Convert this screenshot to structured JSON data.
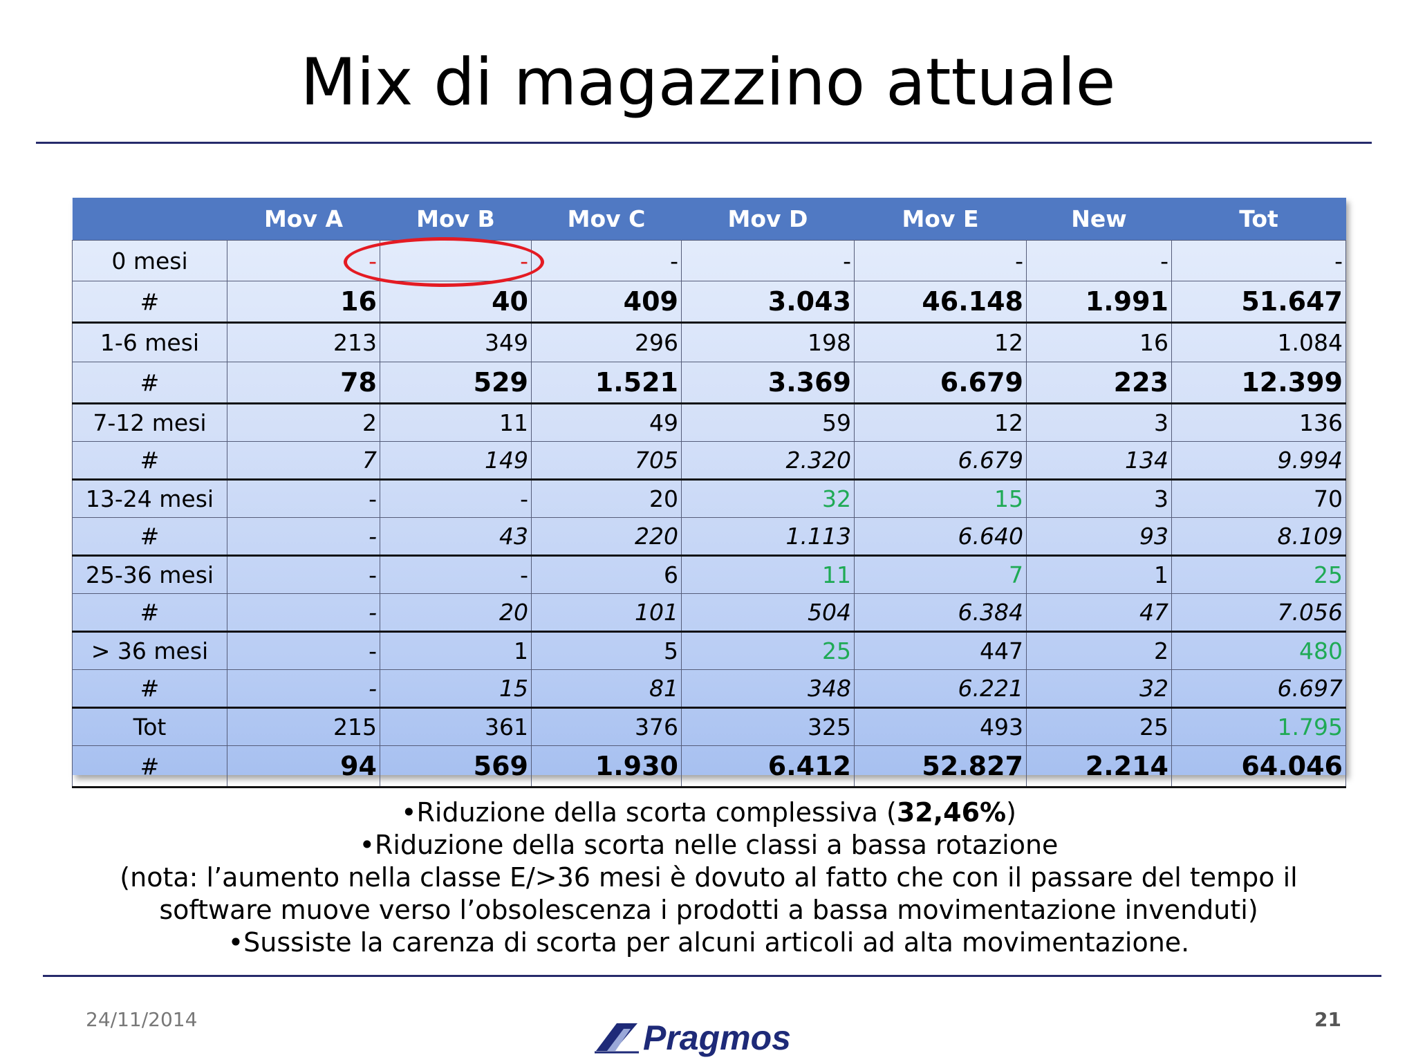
{
  "slide": {
    "title": "Mix di magazzino attuale",
    "date": "24/11/2014",
    "page_number": "21",
    "logo_text": "Pragmos"
  },
  "table": {
    "columns": [
      "",
      "Mov A",
      "Mov B",
      "Mov C",
      "Mov D",
      "Mov E",
      "New",
      "Tot"
    ],
    "rows": [
      {
        "label": "0 mesi",
        "values": [
          "-",
          "-",
          "-",
          "-",
          "-",
          "-",
          "-"
        ]
      },
      {
        "label": "#",
        "values": [
          "16",
          "40",
          "409",
          "3.043",
          "46.148",
          "1.991",
          "51.647"
        ]
      },
      {
        "label": "1-6 mesi",
        "values": [
          "213",
          "349",
          "296",
          "198",
          "12",
          "16",
          "1.084"
        ]
      },
      {
        "label": "#",
        "values": [
          "78",
          "529",
          "1.521",
          "3.369",
          "6.679",
          "223",
          "12.399"
        ]
      },
      {
        "label": "7-12 mesi",
        "values": [
          "2",
          "11",
          "49",
          "59",
          "12",
          "3",
          "136"
        ]
      },
      {
        "label": "#",
        "values": [
          "7",
          "149",
          "705",
          "2.320",
          "6.679",
          "134",
          "9.994"
        ]
      },
      {
        "label": "13-24 mesi",
        "values": [
          "-",
          "-",
          "20",
          "32",
          "15",
          "3",
          "70"
        ]
      },
      {
        "label": "#",
        "values": [
          "-",
          "43",
          "220",
          "1.113",
          "6.640",
          "93",
          "8.109"
        ]
      },
      {
        "label": "25-36 mesi",
        "values": [
          "-",
          "-",
          "6",
          "11",
          "7",
          "1",
          "25"
        ]
      },
      {
        "label": "#",
        "values": [
          "-",
          "20",
          "101",
          "504",
          "6.384",
          "47",
          "7.056"
        ]
      },
      {
        "label": "> 36 mesi",
        "values": [
          "-",
          "1",
          "5",
          "25",
          "447",
          "2",
          "480"
        ]
      },
      {
        "label": "#",
        "values": [
          "-",
          "15",
          "81",
          "348",
          "6.221",
          "32",
          "6.697"
        ]
      },
      {
        "label": "Tot",
        "values": [
          "215",
          "361",
          "376",
          "325",
          "493",
          "25",
          "1.795"
        ]
      },
      {
        "label": "#",
        "values": [
          "94",
          "569",
          "1.930",
          "6.412",
          "52.827",
          "2.214",
          "64.046"
        ]
      }
    ],
    "colors": {
      "header": "#5079c3",
      "highlight_red": "#e02020",
      "highlight_green": "#1faa55"
    }
  },
  "notes": {
    "line1_prefix": "•Riduzione della scorta complessiva (",
    "line1_bold": "32,46%",
    "line1_suffix": ")",
    "line2": "•Riduzione della scorta nelle classi a bassa rotazione",
    "line3": "(nota: l’aumento nella classe E/>36 mesi è dovuto al fatto che con il passare del tempo il",
    "line4": "software muove verso l’obsolescenza i prodotti a bassa movimentazione invenduti)",
    "line5": "•Sussiste la carenza di scorta per alcuni articoli ad alta movimentazione."
  }
}
